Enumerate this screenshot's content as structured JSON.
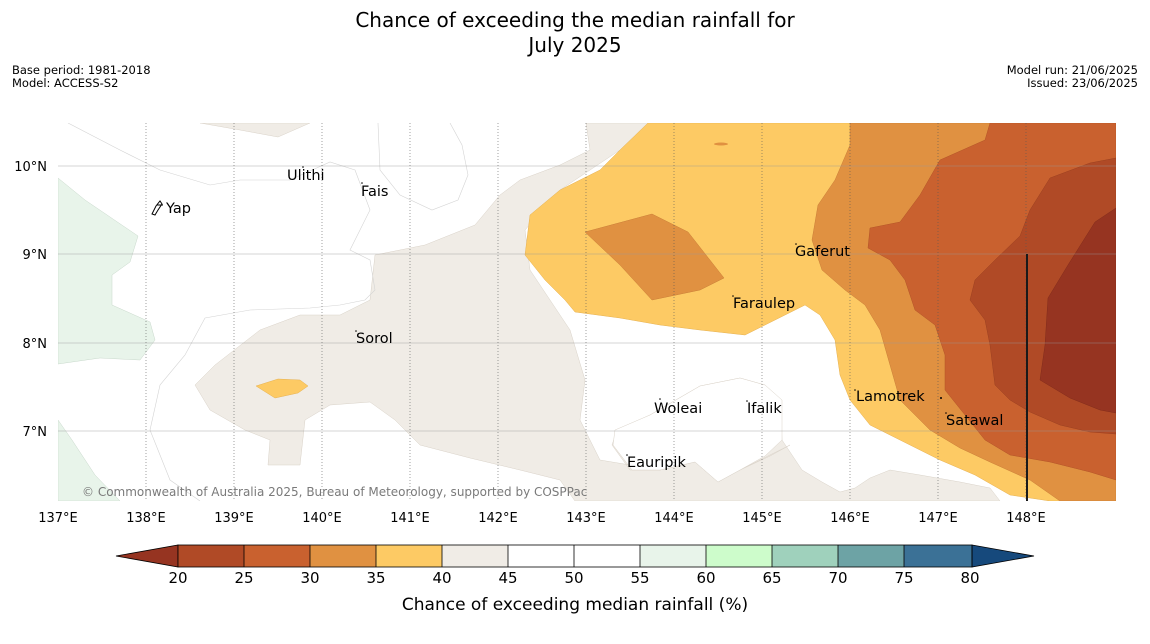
{
  "title": {
    "line1": "Chance of exceeding the median rainfall for",
    "line2": "July 2025"
  },
  "meta_left": {
    "base_period": "Base period: 1981-2018",
    "model": "Model: ACCESS-S2"
  },
  "meta_right": {
    "model_run": "Model run: 21/06/2025",
    "issued": "Issued: 23/06/2025"
  },
  "map": {
    "lat_labels": [
      "10°N",
      "9°N",
      "8°N",
      "7°N"
    ],
    "lon_labels": [
      "137°E",
      "138°E",
      "139°E",
      "140°E",
      "141°E",
      "142°E",
      "143°E",
      "144°E",
      "145°E",
      "146°E",
      "147°E",
      "148°E"
    ],
    "places": [
      "Yap",
      "Ulithi",
      "Fais",
      "Gaferut",
      "Faraulep",
      "Sorol",
      "Woleai",
      "Ifalik",
      "Lamotrek",
      "Satawal",
      "Eauripik"
    ],
    "copyright": "© Commonwealth of Australia 2025, Bureau of Meteorology, supported by COSPPac"
  },
  "colorbar": {
    "title": "Chance of exceeding median rainfall (%)",
    "ticks": [
      "20",
      "25",
      "30",
      "35",
      "40",
      "45",
      "50",
      "55",
      "60",
      "65",
      "70",
      "75",
      "80"
    ],
    "colors": {
      "below_20": "#963421",
      "20_25": "#b04a26",
      "25_30": "#c9612f",
      "30_35": "#e09141",
      "35_40": "#fdca64",
      "40_45": "#f0ece6",
      "45_50": "#ffffff",
      "50_55": "#ffffff",
      "55_60": "#e8f4ea",
      "60_65": "#cdfccb",
      "65_70": "#9fd1bc",
      "70_75": "#6da3a5",
      "75_80": "#3b7196",
      "above_80": "#16497c"
    }
  }
}
